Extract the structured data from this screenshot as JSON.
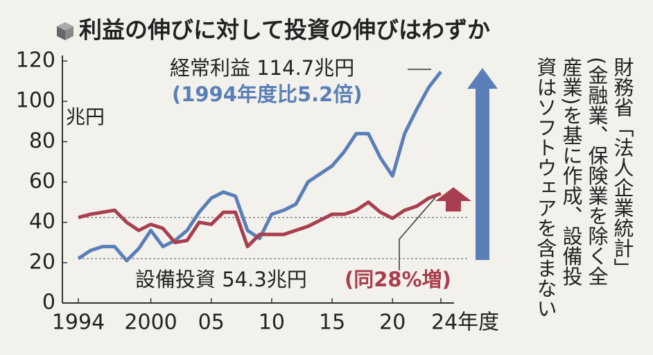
{
  "chart_data": {
    "type": "line",
    "title": "利益の伸びに対して投資の伸びはわずか",
    "y_label": "兆円",
    "x": [
      1994,
      1995,
      1996,
      1997,
      1998,
      1999,
      2000,
      2001,
      2002,
      2003,
      2004,
      2005,
      2006,
      2007,
      2008,
      2009,
      2010,
      2011,
      2012,
      2013,
      2014,
      2015,
      2016,
      2017,
      2018,
      2019,
      2020,
      2021,
      2022,
      2023,
      2024
    ],
    "series": [
      {
        "name": "経常利益 114.7兆円",
        "note": "(1994年度比5.2倍)",
        "color": "#5a7fb8",
        "values": [
          22,
          26,
          28,
          28,
          21,
          27,
          36,
          28,
          31,
          36,
          45,
          52,
          55,
          53,
          36,
          32,
          44,
          46,
          49,
          60,
          64,
          68,
          75,
          84,
          84,
          72,
          63,
          84,
          96,
          107,
          114.7
        ]
      },
      {
        "name": "設備投資 54.3兆円",
        "note": "(同28%増)",
        "color": "#a83e4e",
        "values": [
          42.4,
          44,
          45,
          46,
          40,
          36,
          39,
          37,
          30,
          31,
          40,
          39,
          45,
          45,
          28,
          34,
          34,
          34,
          36,
          38,
          41,
          44,
          44,
          46,
          50,
          45,
          42,
          46,
          48,
          52,
          54.3
        ]
      }
    ],
    "ylim": [
      0,
      120
    ],
    "yticks": [
      0,
      20,
      40,
      60,
      80,
      100,
      120
    ],
    "xlim": [
      1994,
      2024
    ],
    "xticks": [
      {
        "value": 1994,
        "label": "1994"
      },
      {
        "value": 2000,
        "label": "2000"
      },
      {
        "value": 2005,
        "label": "05"
      },
      {
        "value": 2010,
        "label": "10"
      },
      {
        "value": 2015,
        "label": "15"
      },
      {
        "value": 2020,
        "label": "20"
      },
      {
        "value": 2024,
        "label": "24年度"
      }
    ],
    "source": [
      "財務省「法人企業統計」",
      "(金融業、保険業を除く全",
      "産業)を基に作成、設備投",
      "資はソフトウェアを含まない"
    ]
  }
}
